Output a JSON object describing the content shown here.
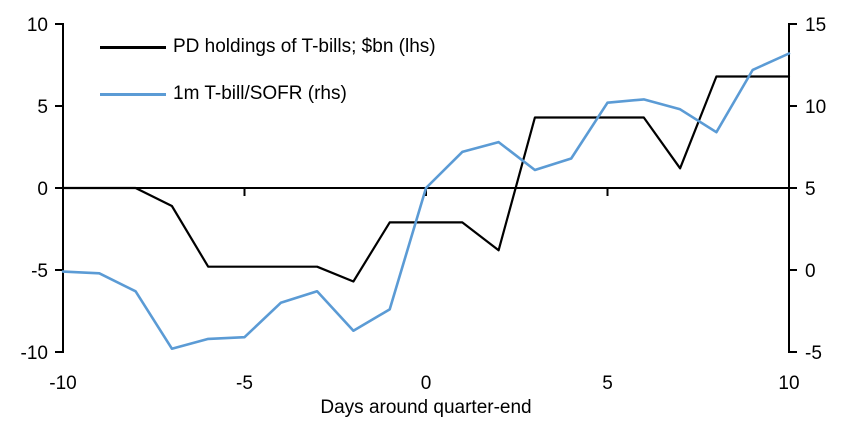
{
  "chart_data": {
    "type": "line",
    "title": "",
    "xlabel": "Days around quarter-end",
    "grid": false,
    "legend_position": "top-left-inside",
    "x": [
      -10,
      -9,
      -8,
      -7,
      -6,
      -5,
      -4,
      -3,
      -2,
      -1,
      0,
      1,
      2,
      3,
      4,
      5,
      6,
      7,
      8,
      9,
      10
    ],
    "x_ticks": [
      -10,
      -5,
      0,
      5,
      10
    ],
    "x_tick_marks": [
      -5,
      0,
      5
    ],
    "left_axis": {
      "range": [
        -10,
        10
      ],
      "ticks": [
        10,
        5,
        0,
        -5,
        -10
      ]
    },
    "right_axis": {
      "range": [
        -5,
        15
      ],
      "ticks": [
        15,
        10,
        5,
        0,
        -5
      ]
    },
    "series": [
      {
        "name": "PD holdings of T-bills; $bn (lhs)",
        "axis": "left",
        "color": "#000000",
        "values": [
          0,
          0,
          0,
          -1.1,
          -4.8,
          -4.8,
          -4.8,
          -4.8,
          -5.7,
          -2.1,
          -2.1,
          -2.1,
          -3.8,
          4.3,
          4.3,
          4.3,
          4.3,
          1.2,
          6.8,
          6.8,
          6.8
        ]
      },
      {
        "name": "1m T-bill/SOFR (rhs)",
        "axis": "right",
        "color": "#5B9BD5",
        "values": [
          -0.1,
          -0.2,
          -1.3,
          -4.8,
          -4.2,
          -4.1,
          -2.0,
          -1.3,
          -3.7,
          -2.4,
          5.0,
          7.2,
          7.8,
          6.1,
          6.8,
          10.2,
          10.4,
          9.8,
          8.4,
          12.2,
          13.2
        ]
      }
    ],
    "colors": {
      "axis": "#000000",
      "background": "#ffffff"
    }
  }
}
